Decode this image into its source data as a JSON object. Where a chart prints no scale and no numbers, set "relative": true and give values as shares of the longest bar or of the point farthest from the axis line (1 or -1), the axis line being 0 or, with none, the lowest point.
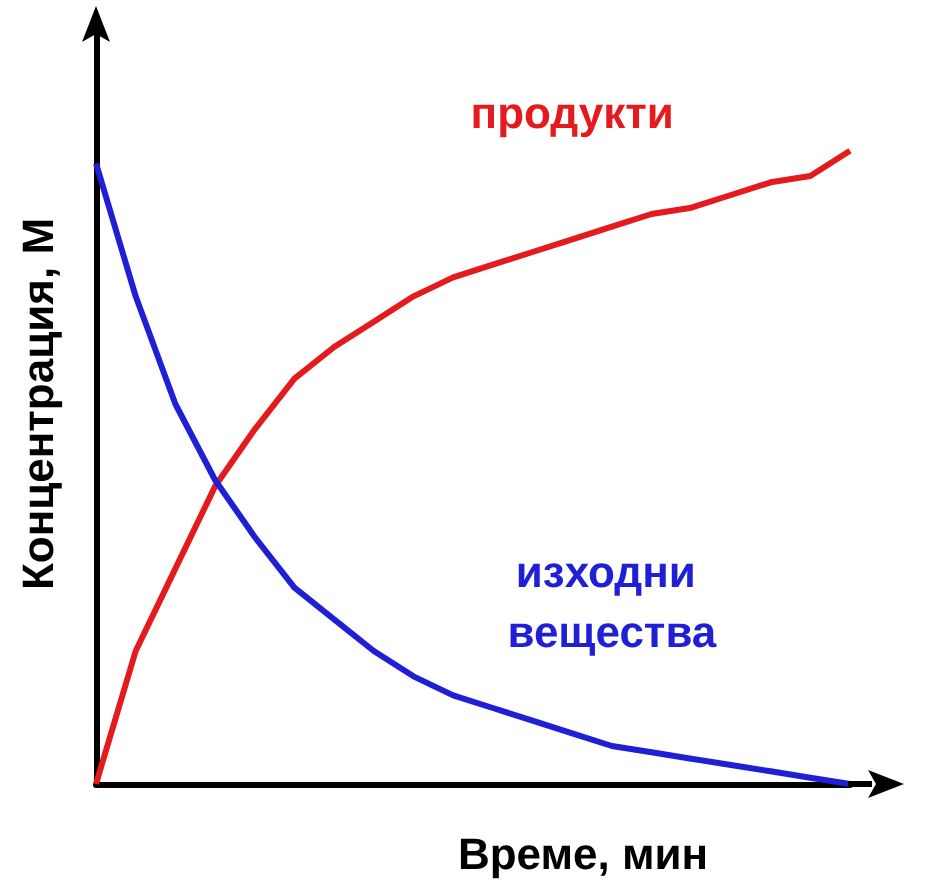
{
  "chart_data": {
    "type": "line",
    "relative": true,
    "xlabel": "Време, мин",
    "ylabel": "Концентрация, М",
    "marker": "none",
    "line_style": "solid",
    "legend": false,
    "grid": false,
    "categories": [
      null,
      null,
      null,
      null,
      null,
      null,
      null,
      null,
      null,
      null,
      null,
      null,
      null,
      null,
      null,
      null,
      null,
      null,
      null,
      null
    ],
    "series": [
      {
        "name": "продукти",
        "color": "#e41a1c",
        "values": [
          0,
          0.21,
          0.34,
          0.47,
          0.56,
          0.64,
          0.69,
          0.73,
          0.77,
          0.8,
          0.82,
          0.84,
          0.86,
          0.88,
          0.9,
          0.91,
          0.93,
          0.95,
          0.96,
          1
        ]
      },
      {
        "name": "изходни вещества",
        "color": "#1f1fd6",
        "values": [
          0.98,
          0.77,
          0.6,
          0.48,
          0.39,
          0.31,
          0.26,
          0.21,
          0.17,
          0.14,
          0.12,
          0.1,
          0.08,
          0.06,
          0.05,
          0.04,
          0.03,
          0.02,
          0.01,
          0
        ]
      }
    ]
  }
}
